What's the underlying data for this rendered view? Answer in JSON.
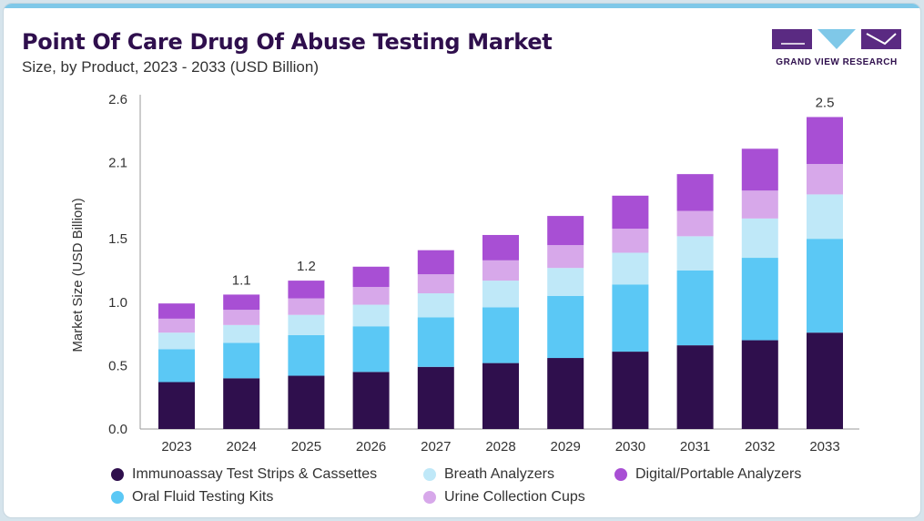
{
  "header": {
    "title": "Point Of Care Drug Of Abuse Testing Market",
    "subtitle": "Size, by Product, 2023 - 2033 (USD Billion)"
  },
  "logo": {
    "text": "GRAND VIEW RESEARCH"
  },
  "colors": {
    "accent_bar": "#7fc8e8",
    "title": "#2f0f4d",
    "series": [
      "#2f0f4d",
      "#5bc8f5",
      "#bfe8f8",
      "#d7a8ea",
      "#a84fd4"
    ]
  },
  "chart_data": {
    "type": "bar",
    "stacked": true,
    "title": "Point Of Care Drug Of Abuse Testing Market",
    "subtitle": "Size, by Product, 2023 - 2033 (USD Billion)",
    "xlabel": "",
    "ylabel": "Market Size (USD Billion)",
    "ylim": [
      0,
      2.6
    ],
    "yticks": [
      "0.0",
      "0.5",
      "1.0",
      "1.5",
      "2.1",
      "2.6"
    ],
    "ytick_values": [
      0,
      0.5,
      1.0,
      1.5,
      2.1,
      2.6
    ],
    "grid": false,
    "legend_position": "bottom",
    "categories": [
      "2023",
      "2024",
      "2025",
      "2026",
      "2027",
      "2028",
      "2029",
      "2030",
      "2031",
      "2032",
      "2033"
    ],
    "series": [
      {
        "name": "Immunoassay Test Strips & Cassettes",
        "color": "#2f0f4d",
        "values": [
          0.37,
          0.4,
          0.42,
          0.45,
          0.49,
          0.52,
          0.56,
          0.61,
          0.66,
          0.7,
          0.76
        ]
      },
      {
        "name": "Oral Fluid Testing Kits",
        "color": "#5bc8f5",
        "values": [
          0.26,
          0.28,
          0.32,
          0.36,
          0.39,
          0.44,
          0.49,
          0.53,
          0.59,
          0.65,
          0.74
        ]
      },
      {
        "name": "Breath Analyzers",
        "color": "#bfe8f8",
        "values": [
          0.13,
          0.14,
          0.16,
          0.17,
          0.19,
          0.21,
          0.22,
          0.25,
          0.27,
          0.31,
          0.35
        ]
      },
      {
        "name": "Urine Collection Cups",
        "color": "#d7a8ea",
        "values": [
          0.11,
          0.12,
          0.13,
          0.14,
          0.15,
          0.16,
          0.18,
          0.19,
          0.2,
          0.22,
          0.24
        ]
      },
      {
        "name": "Digital/Portable Analyzers",
        "color": "#a84fd4",
        "values": [
          0.12,
          0.12,
          0.14,
          0.16,
          0.19,
          0.2,
          0.23,
          0.26,
          0.29,
          0.33,
          0.37
        ]
      }
    ],
    "data_labels": [
      {
        "category": "2024",
        "text": "1.1"
      },
      {
        "category": "2025",
        "text": "1.2"
      },
      {
        "category": "2033",
        "text": "2.5"
      }
    ],
    "legend": [
      {
        "name": "Immunoassay Test Strips & Cassettes",
        "color": "#2f0f4d"
      },
      {
        "name": "Breath Analyzers",
        "color": "#bfe8f8"
      },
      {
        "name": "Digital/Portable Analyzers",
        "color": "#a84fd4"
      },
      {
        "name": "Oral Fluid Testing Kits",
        "color": "#5bc8f5"
      },
      {
        "name": "Urine Collection Cups",
        "color": "#d7a8ea"
      }
    ]
  }
}
